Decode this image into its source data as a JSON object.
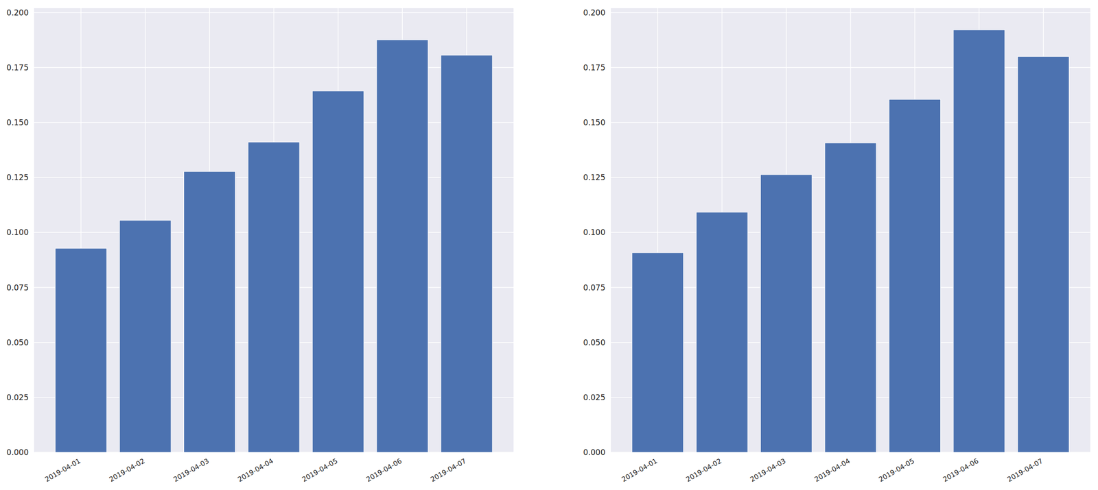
{
  "chart_data": [
    {
      "type": "bar",
      "categories": [
        "2019-04-01",
        "2019-04-02",
        "2019-04-03",
        "2019-04-04",
        "2019-04-05",
        "2019-04-06",
        "2019-04-07"
      ],
      "values": [
        0.0928,
        0.1055,
        0.1277,
        0.1411,
        0.1643,
        0.1876,
        0.1806
      ],
      "color": "#4c72b0",
      "ylim": [
        0,
        0.202
      ],
      "yticks": [
        {
          "value": 0,
          "label": "0.000"
        },
        {
          "value": 0.025,
          "label": "0.025"
        },
        {
          "value": 0.05,
          "label": "0.050"
        },
        {
          "value": 0.075,
          "label": "0.075"
        },
        {
          "value": 0.1,
          "label": "0.100"
        },
        {
          "value": 0.125,
          "label": "0.125"
        },
        {
          "value": 0.15,
          "label": "0.150"
        },
        {
          "value": 0.175,
          "label": "0.175"
        },
        {
          "value": 0.2,
          "label": "0.200"
        }
      ],
      "grid": true
    },
    {
      "type": "bar",
      "categories": [
        "2019-04-01",
        "2019-04-02",
        "2019-04-03",
        "2019-04-04",
        "2019-04-05",
        "2019-04-06",
        "2019-04-07"
      ],
      "values": [
        0.0908,
        0.1092,
        0.1263,
        0.1407,
        0.1605,
        0.1921,
        0.18
      ],
      "color": "#4c72b0",
      "ylim": [
        0,
        0.202
      ],
      "yticks": [
        {
          "value": 0,
          "label": "0.000"
        },
        {
          "value": 0.025,
          "label": "0.025"
        },
        {
          "value": 0.05,
          "label": "0.050"
        },
        {
          "value": 0.075,
          "label": "0.075"
        },
        {
          "value": 0.1,
          "label": "0.100"
        },
        {
          "value": 0.125,
          "label": "0.125"
        },
        {
          "value": 0.15,
          "label": "0.150"
        },
        {
          "value": 0.175,
          "label": "0.175"
        },
        {
          "value": 0.2,
          "label": "0.200"
        }
      ],
      "grid": true
    }
  ]
}
